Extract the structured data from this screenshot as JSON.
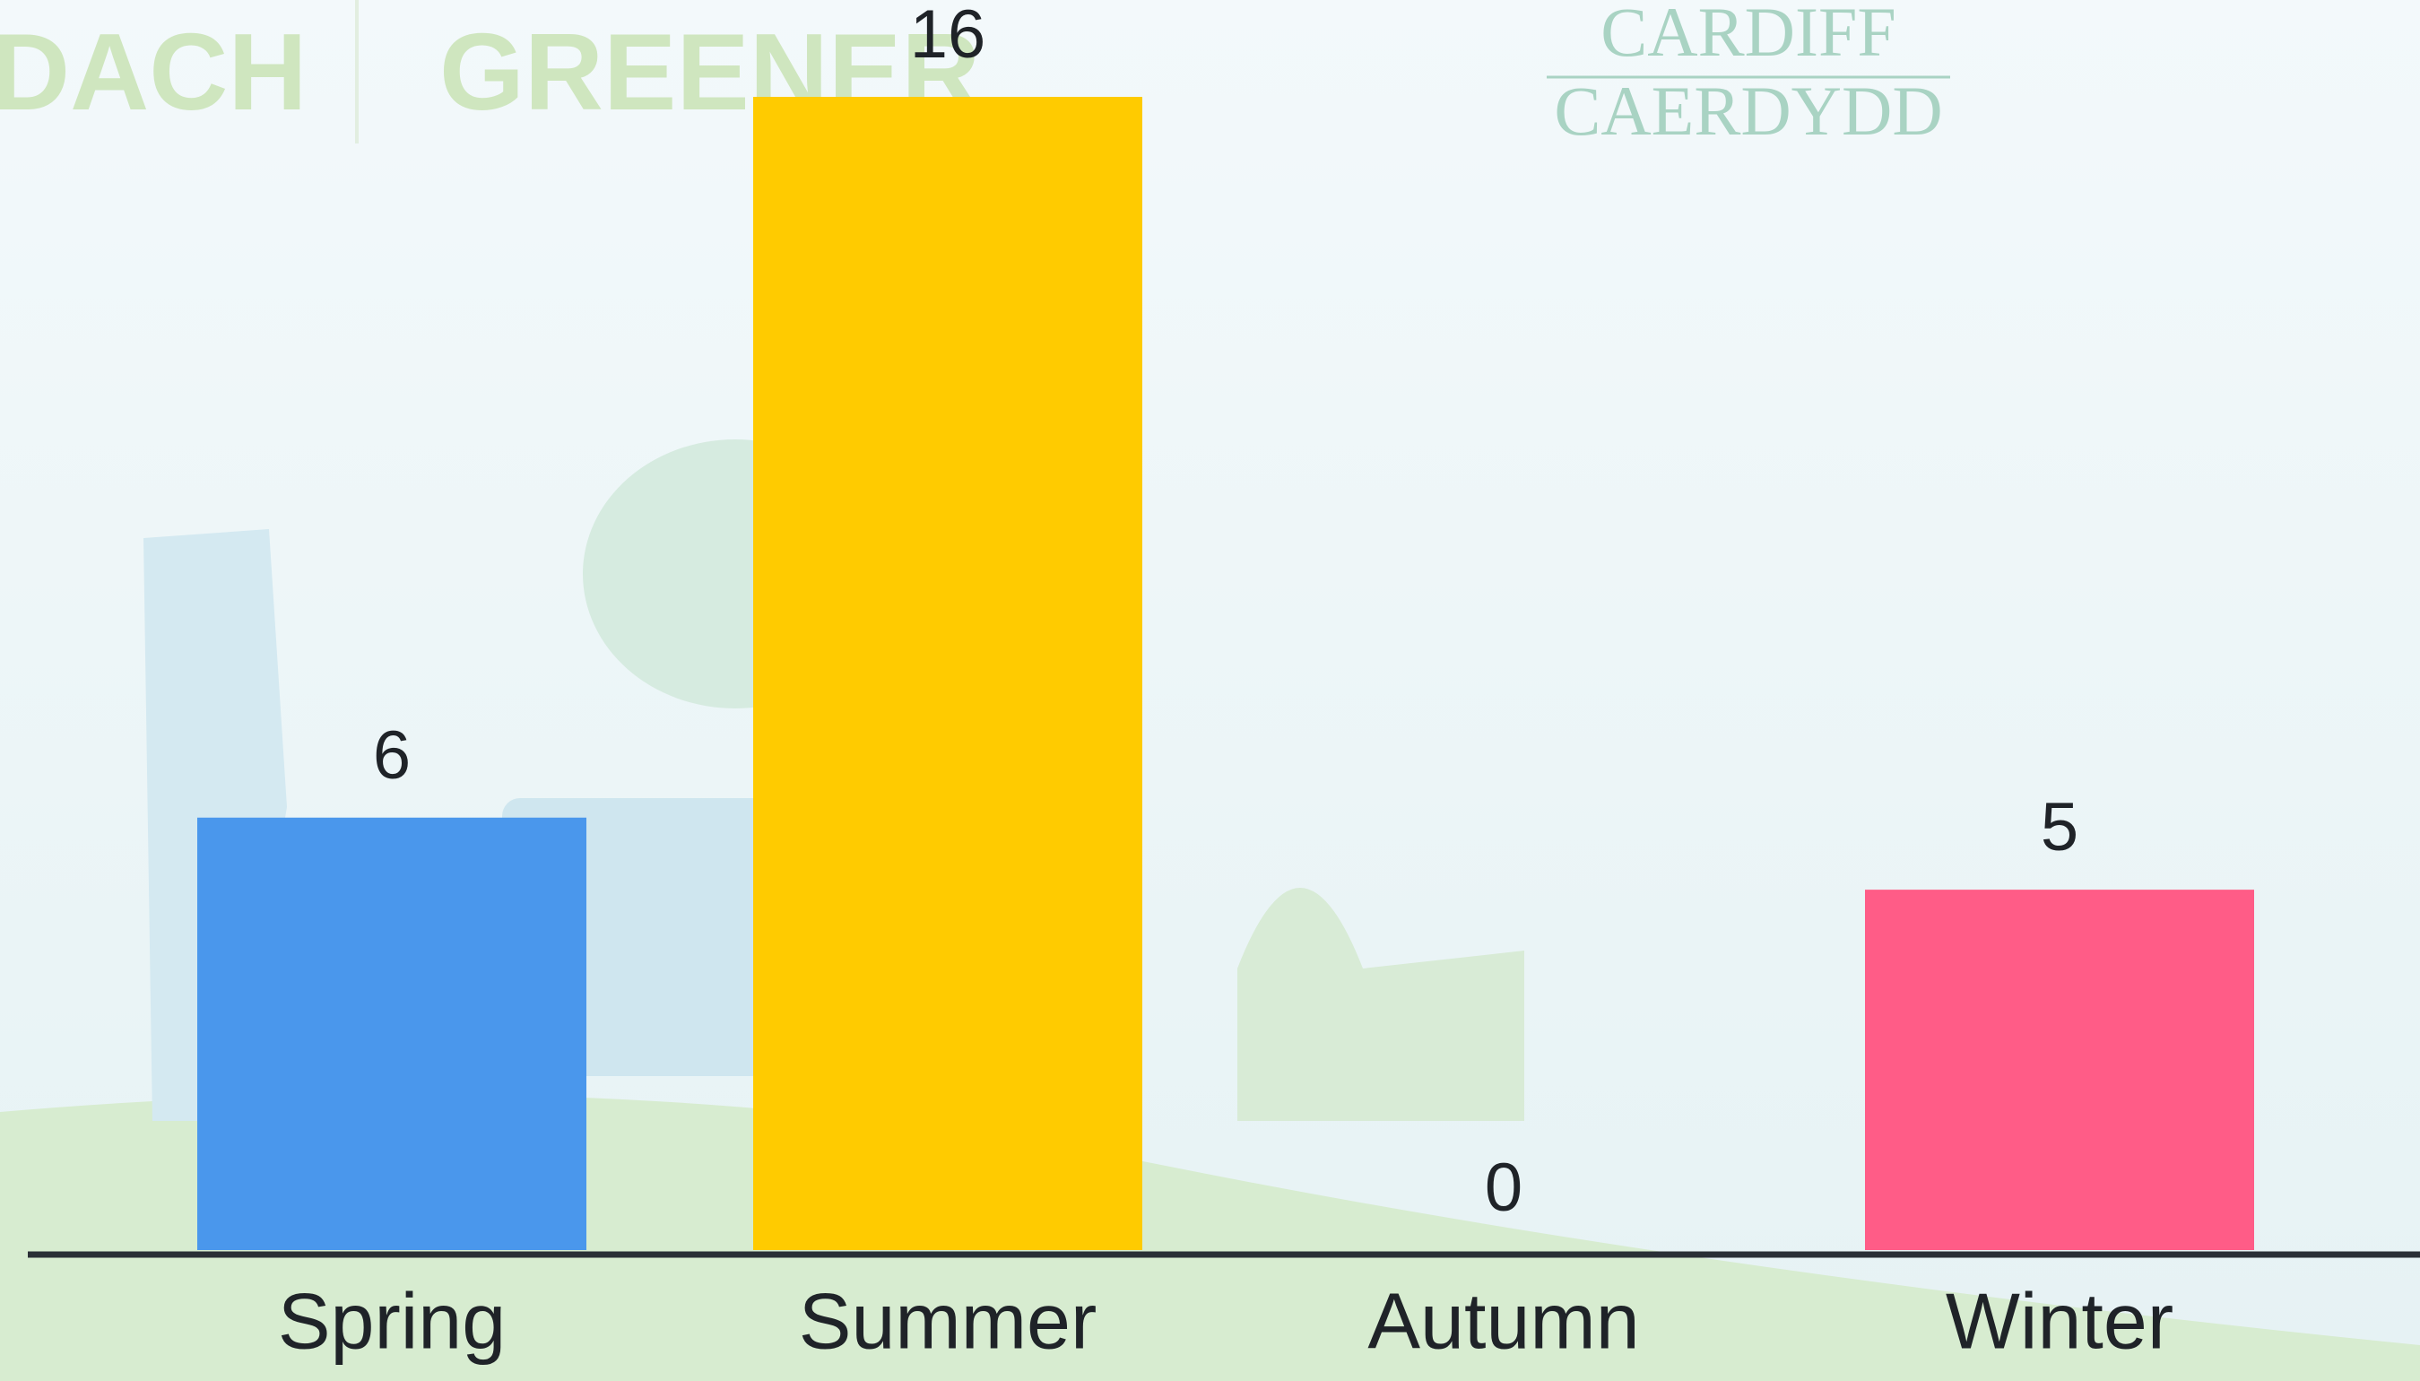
{
  "chart_data": {
    "type": "bar",
    "categories": [
      "Spring",
      "Summer",
      "Autumn",
      "Winter"
    ],
    "values": [
      6,
      16,
      0,
      5
    ],
    "colors": [
      "#4a97ec",
      "#ffcb00",
      "#5fb3e0",
      "#ff5c87"
    ],
    "ylim": [
      0,
      16
    ],
    "annotations": [
      "DACH",
      "GREENER",
      "CARDIFF",
      "CAERDYDD"
    ]
  }
}
